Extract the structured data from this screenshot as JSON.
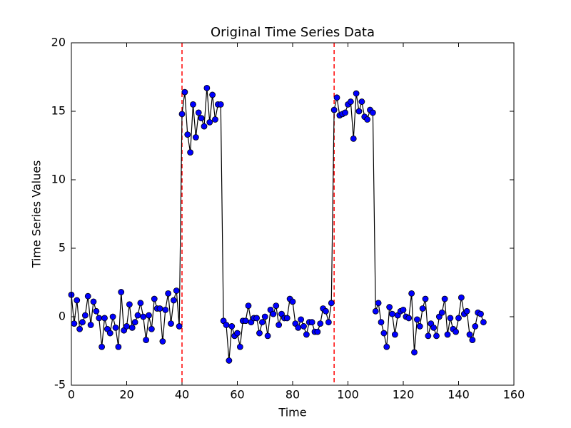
{
  "chart_data": {
    "type": "line",
    "title": "Original Time Series Data",
    "xlabel": "Time",
    "ylabel": "Time Series Values",
    "x": [
      0,
      1,
      2,
      3,
      4,
      5,
      6,
      7,
      8,
      9,
      10,
      11,
      12,
      13,
      14,
      15,
      16,
      17,
      18,
      19,
      20,
      21,
      22,
      23,
      24,
      25,
      26,
      27,
      28,
      29,
      30,
      31,
      32,
      33,
      34,
      35,
      36,
      37,
      38,
      39,
      40,
      41,
      42,
      43,
      44,
      45,
      46,
      47,
      48,
      49,
      50,
      51,
      52,
      53,
      54,
      55,
      56,
      57,
      58,
      59,
      60,
      61,
      62,
      63,
      64,
      65,
      66,
      67,
      68,
      69,
      70,
      71,
      72,
      73,
      74,
      75,
      76,
      77,
      78,
      79,
      80,
      81,
      82,
      83,
      84,
      85,
      86,
      87,
      88,
      89,
      90,
      91,
      92,
      93,
      94,
      95,
      96,
      97,
      98,
      99,
      100,
      101,
      102,
      103,
      104,
      105,
      106,
      107,
      108,
      109,
      110,
      111,
      112,
      113,
      114,
      115,
      116,
      117,
      118,
      119,
      120,
      121,
      122,
      123,
      124,
      125,
      126,
      127,
      128,
      129,
      130,
      131,
      132,
      133,
      134,
      135,
      136,
      137,
      138,
      139,
      140,
      141,
      142,
      143,
      144,
      145,
      146,
      147,
      148,
      149
    ],
    "values": [
      1.6,
      -0.5,
      1.2,
      -0.9,
      -0.4,
      0.1,
      1.5,
      -0.6,
      1.1,
      0.4,
      -0.1,
      -2.2,
      -0.1,
      -0.9,
      -1.2,
      0.0,
      -0.8,
      -2.2,
      1.8,
      -1.0,
      -0.7,
      0.9,
      -0.8,
      -0.4,
      0.1,
      1.0,
      0.0,
      -1.7,
      0.1,
      -0.9,
      1.3,
      0.6,
      0.6,
      -1.8,
      0.5,
      1.7,
      -0.5,
      1.2,
      1.9,
      -0.7,
      14.8,
      16.4,
      13.3,
      12.0,
      15.5,
      13.1,
      14.9,
      14.5,
      13.9,
      16.7,
      14.2,
      16.2,
      14.4,
      15.5,
      15.5,
      -0.3,
      -0.6,
      -3.2,
      -0.7,
      -1.4,
      -1.2,
      -2.2,
      -0.3,
      -0.3,
      0.8,
      -0.4,
      -0.1,
      -0.1,
      -1.2,
      -0.4,
      0.0,
      -1.4,
      0.5,
      0.2,
      0.8,
      -0.6,
      0.2,
      -0.1,
      -0.1,
      1.3,
      1.1,
      -0.5,
      -0.8,
      -0.2,
      -0.7,
      -1.3,
      -0.4,
      -0.4,
      -1.1,
      -1.1,
      -0.5,
      0.6,
      0.4,
      -0.4,
      1.0,
      15.1,
      16.0,
      14.7,
      14.8,
      14.9,
      15.5,
      15.7,
      13.0,
      16.3,
      15.0,
      15.7,
      14.6,
      14.4,
      15.1,
      14.9,
      0.4,
      1.0,
      -0.4,
      -1.2,
      -2.2,
      0.7,
      0.2,
      -1.3,
      0.1,
      0.4,
      0.5,
      0.0,
      -0.1,
      1.7,
      -2.6,
      -0.2,
      -0.7,
      0.6,
      1.3,
      -1.4,
      -0.5,
      -0.8,
      -1.4,
      0.0,
      0.3,
      1.3,
      -1.3,
      -0.1,
      -0.9,
      -1.1,
      -0.1,
      1.4,
      0.2,
      0.4,
      -1.3,
      -1.7,
      -0.7,
      0.3,
      0.2,
      -0.4
    ],
    "color": "#000000",
    "marker_color": "#0000ff",
    "vlines": {
      "values": [
        40,
        95
      ],
      "color": "#ff0000"
    },
    "xlim": [
      0,
      160
    ],
    "ylim": [
      -5,
      20
    ],
    "xticks": [
      0,
      20,
      40,
      60,
      80,
      100,
      120,
      140,
      160
    ],
    "yticks": [
      -5,
      0,
      5,
      10,
      15,
      20
    ]
  }
}
